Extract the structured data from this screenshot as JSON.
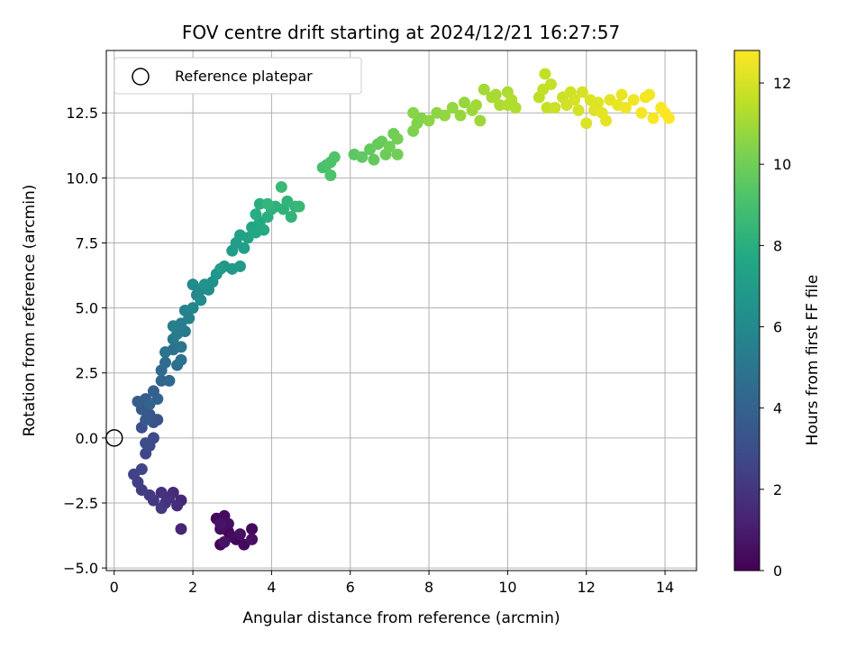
{
  "chart_data": {
    "type": "scatter",
    "title": "FOV centre drift starting at 2024/12/21 16:27:57",
    "xlabel": "Angular distance from reference (arcmin)",
    "ylabel": "Rotation from reference (arcmin)",
    "colorbar_label": "Hours from first FF file",
    "xlim": [
      -0.2,
      14.8
    ],
    "ylim": [
      -5.1,
      14.9
    ],
    "xticks": [
      0,
      2,
      4,
      6,
      8,
      10,
      12,
      14
    ],
    "xtick_labels": [
      "0",
      "2",
      "4",
      "6",
      "8",
      "10",
      "12",
      "14"
    ],
    "yticks": [
      -5.0,
      -2.5,
      0.0,
      2.5,
      5.0,
      7.5,
      10.0,
      12.5
    ],
    "ytick_labels": [
      "−5.0",
      "−2.5",
      "0.0",
      "2.5",
      "5.0",
      "7.5",
      "10.0",
      "12.5"
    ],
    "colorbar_range": [
      0,
      12.8
    ],
    "colorbar_ticks": [
      0,
      2,
      4,
      6,
      8,
      10,
      12
    ],
    "colorbar_tick_labels": [
      "0",
      "2",
      "4",
      "6",
      "8",
      "10",
      "12"
    ],
    "colormap": "viridis",
    "grid": true,
    "legend": {
      "position": "top-left",
      "entries": [
        {
          "label": "Reference platepar",
          "marker": "open-circle"
        }
      ]
    },
    "reference_point": {
      "x": 0,
      "y": 0
    },
    "points": [
      {
        "x": 2.7,
        "y": -4.1,
        "h": 0.05
      },
      {
        "x": 2.9,
        "y": -3.6,
        "h": 0.1
      },
      {
        "x": 3.1,
        "y": -3.9,
        "h": 0.15
      },
      {
        "x": 2.6,
        "y": -3.1,
        "h": 0.2
      },
      {
        "x": 3.5,
        "y": -3.5,
        "h": 0.25
      },
      {
        "x": 3.3,
        "y": -4.1,
        "h": 0.3
      },
      {
        "x": 2.8,
        "y": -3.0,
        "h": 0.35
      },
      {
        "x": 3.0,
        "y": -3.8,
        "h": 0.4
      },
      {
        "x": 2.7,
        "y": -3.5,
        "h": 0.45
      },
      {
        "x": 3.5,
        "y": -3.9,
        "h": 0.5
      },
      {
        "x": 2.9,
        "y": -3.3,
        "h": 0.55
      },
      {
        "x": 3.2,
        "y": -3.7,
        "h": 0.6
      },
      {
        "x": 2.8,
        "y": -4.0,
        "h": 0.65
      },
      {
        "x": 2.7,
        "y": -3.3,
        "h": 0.7
      },
      {
        "x": 1.7,
        "y": -3.5,
        "h": 1.3
      },
      {
        "x": 1.7,
        "y": -2.4,
        "h": 1.4
      },
      {
        "x": 1.5,
        "y": -2.1,
        "h": 1.5
      },
      {
        "x": 1.6,
        "y": -2.6,
        "h": 1.6
      },
      {
        "x": 1.4,
        "y": -2.3,
        "h": 1.7
      },
      {
        "x": 1.2,
        "y": -2.1,
        "h": 1.8
      },
      {
        "x": 1.3,
        "y": -2.5,
        "h": 1.9
      },
      {
        "x": 1.0,
        "y": -2.4,
        "h": 2.0
      },
      {
        "x": 1.2,
        "y": -2.7,
        "h": 2.1
      },
      {
        "x": 0.9,
        "y": -2.2,
        "h": 2.2
      },
      {
        "x": 0.7,
        "y": -2.0,
        "h": 2.3
      },
      {
        "x": 0.6,
        "y": -1.7,
        "h": 2.4
      },
      {
        "x": 0.5,
        "y": -1.4,
        "h": 2.5
      },
      {
        "x": 0.7,
        "y": -1.2,
        "h": 2.6
      },
      {
        "x": 0.8,
        "y": -0.6,
        "h": 2.7
      },
      {
        "x": 0.9,
        "y": -0.3,
        "h": 2.8
      },
      {
        "x": 1.0,
        "y": 0.0,
        "h": 2.9
      },
      {
        "x": 0.8,
        "y": -0.2,
        "h": 3.0
      },
      {
        "x": 0.7,
        "y": 0.4,
        "h": 3.1
      },
      {
        "x": 1.0,
        "y": 0.6,
        "h": 3.2
      },
      {
        "x": 1.1,
        "y": 0.7,
        "h": 3.3
      },
      {
        "x": 0.9,
        "y": 0.9,
        "h": 3.4
      },
      {
        "x": 0.7,
        "y": 1.1,
        "h": 3.5
      },
      {
        "x": 0.8,
        "y": 0.7,
        "h": 3.6
      },
      {
        "x": 0.6,
        "y": 1.4,
        "h": 3.7
      },
      {
        "x": 0.8,
        "y": 1.5,
        "h": 3.8
      },
      {
        "x": 1.0,
        "y": 1.8,
        "h": 3.9
      },
      {
        "x": 1.1,
        "y": 1.5,
        "h": 4.0
      },
      {
        "x": 0.9,
        "y": 1.3,
        "h": 4.1
      },
      {
        "x": 1.2,
        "y": 2.2,
        "h": 4.2
      },
      {
        "x": 1.4,
        "y": 2.2,
        "h": 4.3
      },
      {
        "x": 1.2,
        "y": 2.6,
        "h": 4.4
      },
      {
        "x": 1.3,
        "y": 2.9,
        "h": 4.5
      },
      {
        "x": 1.6,
        "y": 2.8,
        "h": 4.6
      },
      {
        "x": 1.5,
        "y": 3.4,
        "h": 4.7
      },
      {
        "x": 1.7,
        "y": 3.0,
        "h": 4.8
      },
      {
        "x": 1.3,
        "y": 3.3,
        "h": 4.9
      },
      {
        "x": 1.7,
        "y": 3.5,
        "h": 5.0
      },
      {
        "x": 1.5,
        "y": 3.8,
        "h": 5.1
      },
      {
        "x": 1.8,
        "y": 4.1,
        "h": 5.2
      },
      {
        "x": 1.6,
        "y": 4.0,
        "h": 5.3
      },
      {
        "x": 1.7,
        "y": 4.4,
        "h": 5.4
      },
      {
        "x": 1.5,
        "y": 4.3,
        "h": 5.5
      },
      {
        "x": 1.9,
        "y": 4.6,
        "h": 5.6
      },
      {
        "x": 1.8,
        "y": 4.9,
        "h": 5.7
      },
      {
        "x": 2.0,
        "y": 5.0,
        "h": 5.8
      },
      {
        "x": 2.1,
        "y": 5.5,
        "h": 5.9
      },
      {
        "x": 2.2,
        "y": 5.7,
        "h": 6.0
      },
      {
        "x": 2.0,
        "y": 5.9,
        "h": 6.1
      },
      {
        "x": 2.2,
        "y": 5.3,
        "h": 6.2
      },
      {
        "x": 2.4,
        "y": 5.7,
        "h": 6.3
      },
      {
        "x": 2.5,
        "y": 6.0,
        "h": 6.4
      },
      {
        "x": 2.3,
        "y": 5.9,
        "h": 6.5
      },
      {
        "x": 2.6,
        "y": 6.3,
        "h": 6.6
      },
      {
        "x": 2.8,
        "y": 6.6,
        "h": 6.7
      },
      {
        "x": 3.0,
        "y": 6.5,
        "h": 6.8
      },
      {
        "x": 3.2,
        "y": 6.6,
        "h": 6.9
      },
      {
        "x": 2.7,
        "y": 6.5,
        "h": 7.0
      },
      {
        "x": 3.0,
        "y": 7.2,
        "h": 7.0
      },
      {
        "x": 3.1,
        "y": 7.5,
        "h": 7.1
      },
      {
        "x": 3.3,
        "y": 7.3,
        "h": 7.2
      },
      {
        "x": 3.2,
        "y": 7.8,
        "h": 7.3
      },
      {
        "x": 3.4,
        "y": 7.7,
        "h": 7.4
      },
      {
        "x": 3.5,
        "y": 8.1,
        "h": 7.5
      },
      {
        "x": 3.6,
        "y": 7.9,
        "h": 7.6
      },
      {
        "x": 3.7,
        "y": 8.3,
        "h": 7.7
      },
      {
        "x": 3.8,
        "y": 8.0,
        "h": 7.8
      },
      {
        "x": 3.6,
        "y": 8.6,
        "h": 7.9
      },
      {
        "x": 3.7,
        "y": 9.0,
        "h": 8.0
      },
      {
        "x": 3.9,
        "y": 8.5,
        "h": 8.0
      },
      {
        "x": 4.0,
        "y": 8.8,
        "h": 8.1
      },
      {
        "x": 4.1,
        "y": 8.9,
        "h": 8.2
      },
      {
        "x": 4.3,
        "y": 8.8,
        "h": 8.2
      },
      {
        "x": 4.4,
        "y": 9.1,
        "h": 8.3
      },
      {
        "x": 4.5,
        "y": 8.5,
        "h": 8.3
      },
      {
        "x": 4.6,
        "y": 8.9,
        "h": 8.4
      },
      {
        "x": 4.7,
        "y": 8.9,
        "h": 8.5
      },
      {
        "x": 4.25,
        "y": 9.65,
        "h": 8.6
      },
      {
        "x": 3.9,
        "y": 9.0,
        "h": 8.4
      },
      {
        "x": 5.3,
        "y": 10.4,
        "h": 9.0
      },
      {
        "x": 5.4,
        "y": 10.5,
        "h": 9.1
      },
      {
        "x": 5.5,
        "y": 10.1,
        "h": 9.2
      },
      {
        "x": 5.6,
        "y": 10.8,
        "h": 9.3
      },
      {
        "x": 5.5,
        "y": 10.6,
        "h": 9.2
      },
      {
        "x": 6.1,
        "y": 10.9,
        "h": 9.5
      },
      {
        "x": 6.3,
        "y": 10.8,
        "h": 9.6
      },
      {
        "x": 6.5,
        "y": 11.1,
        "h": 9.7
      },
      {
        "x": 6.6,
        "y": 10.7,
        "h": 9.7
      },
      {
        "x": 6.7,
        "y": 11.3,
        "h": 9.8
      },
      {
        "x": 6.8,
        "y": 11.4,
        "h": 9.8
      },
      {
        "x": 6.9,
        "y": 10.9,
        "h": 9.9
      },
      {
        "x": 7.0,
        "y": 11.2,
        "h": 10.0
      },
      {
        "x": 7.1,
        "y": 11.7,
        "h": 10.0
      },
      {
        "x": 7.2,
        "y": 10.9,
        "h": 10.0
      },
      {
        "x": 7.2,
        "y": 11.5,
        "h": 10.1
      },
      {
        "x": 7.6,
        "y": 11.8,
        "h": 10.3
      },
      {
        "x": 7.7,
        "y": 12.1,
        "h": 10.4
      },
      {
        "x": 7.8,
        "y": 12.3,
        "h": 10.4
      },
      {
        "x": 7.6,
        "y": 12.5,
        "h": 10.5
      },
      {
        "x": 8.0,
        "y": 12.2,
        "h": 10.6
      },
      {
        "x": 8.2,
        "y": 12.5,
        "h": 10.6
      },
      {
        "x": 8.4,
        "y": 12.4,
        "h": 10.7
      },
      {
        "x": 8.6,
        "y": 12.7,
        "h": 10.7
      },
      {
        "x": 8.8,
        "y": 12.4,
        "h": 10.8
      },
      {
        "x": 8.9,
        "y": 12.9,
        "h": 10.8
      },
      {
        "x": 9.1,
        "y": 12.6,
        "h": 10.9
      },
      {
        "x": 9.3,
        "y": 12.2,
        "h": 10.9
      },
      {
        "x": 9.2,
        "y": 12.8,
        "h": 11.0
      },
      {
        "x": 9.4,
        "y": 13.4,
        "h": 11.0
      },
      {
        "x": 9.6,
        "y": 13.1,
        "h": 11.1
      },
      {
        "x": 9.7,
        "y": 13.2,
        "h": 11.1
      },
      {
        "x": 9.8,
        "y": 12.8,
        "h": 11.2
      },
      {
        "x": 10.0,
        "y": 13.3,
        "h": 11.2
      },
      {
        "x": 10.1,
        "y": 13.0,
        "h": 11.3
      },
      {
        "x": 10.2,
        "y": 12.7,
        "h": 11.3
      },
      {
        "x": 10.0,
        "y": 12.8,
        "h": 11.3
      },
      {
        "x": 10.8,
        "y": 13.1,
        "h": 11.5
      },
      {
        "x": 10.9,
        "y": 13.4,
        "h": 11.6
      },
      {
        "x": 10.95,
        "y": 14.0,
        "h": 11.6
      },
      {
        "x": 11.1,
        "y": 13.6,
        "h": 11.7
      },
      {
        "x": 11.0,
        "y": 12.7,
        "h": 11.7
      },
      {
        "x": 11.2,
        "y": 12.7,
        "h": 11.8
      },
      {
        "x": 11.4,
        "y": 13.1,
        "h": 11.8
      },
      {
        "x": 11.5,
        "y": 12.8,
        "h": 11.9
      },
      {
        "x": 11.6,
        "y": 13.3,
        "h": 11.9
      },
      {
        "x": 11.7,
        "y": 13.0,
        "h": 12.0
      },
      {
        "x": 11.8,
        "y": 12.6,
        "h": 12.0
      },
      {
        "x": 11.9,
        "y": 13.3,
        "h": 12.0
      },
      {
        "x": 12.0,
        "y": 12.1,
        "h": 12.1
      },
      {
        "x": 12.1,
        "y": 13.0,
        "h": 12.1
      },
      {
        "x": 12.2,
        "y": 12.6,
        "h": 12.2
      },
      {
        "x": 12.3,
        "y": 12.9,
        "h": 12.2
      },
      {
        "x": 12.4,
        "y": 12.5,
        "h": 12.3
      },
      {
        "x": 12.5,
        "y": 12.2,
        "h": 12.3
      },
      {
        "x": 12.6,
        "y": 13.0,
        "h": 12.3
      },
      {
        "x": 12.8,
        "y": 12.8,
        "h": 12.4
      },
      {
        "x": 12.9,
        "y": 13.2,
        "h": 12.4
      },
      {
        "x": 13.0,
        "y": 12.7,
        "h": 12.5
      },
      {
        "x": 13.2,
        "y": 13.0,
        "h": 12.5
      },
      {
        "x": 13.4,
        "y": 12.5,
        "h": 12.6
      },
      {
        "x": 13.5,
        "y": 13.1,
        "h": 12.6
      },
      {
        "x": 13.6,
        "y": 13.2,
        "h": 12.6
      },
      {
        "x": 13.7,
        "y": 12.3,
        "h": 12.7
      },
      {
        "x": 13.9,
        "y": 12.7,
        "h": 12.7
      },
      {
        "x": 14.0,
        "y": 12.5,
        "h": 12.8
      },
      {
        "x": 14.1,
        "y": 12.3,
        "h": 12.8
      }
    ]
  }
}
